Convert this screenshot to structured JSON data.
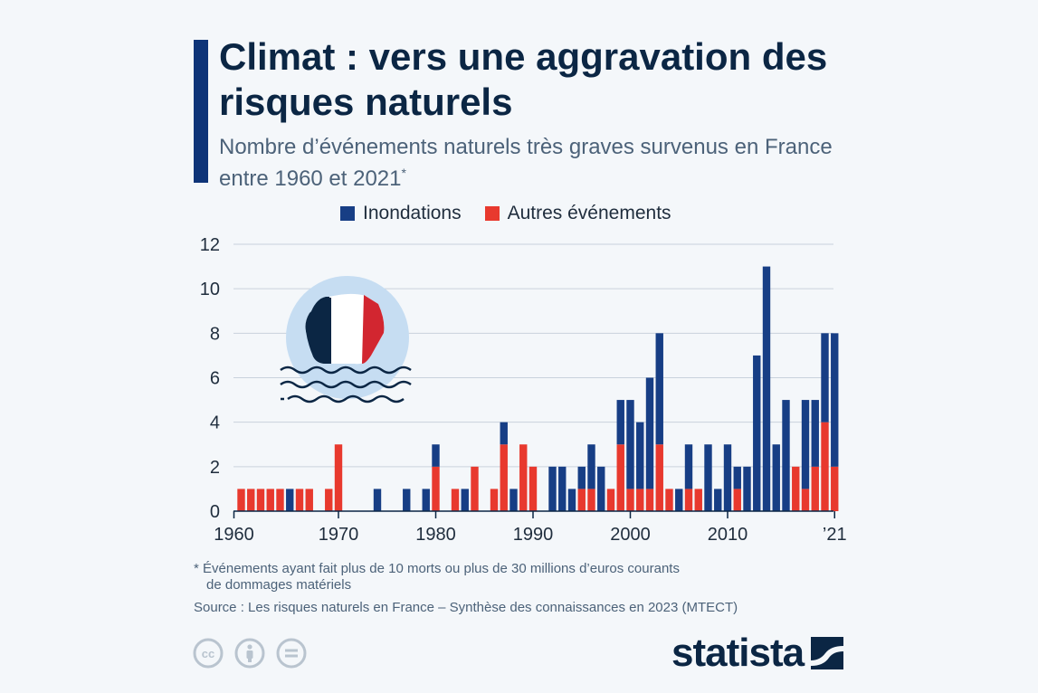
{
  "header": {
    "title": "Climat : vers une aggravation des risques naturels",
    "subtitle": "Nombre d’événements naturels très graves survenus en France entre 1960 et 2021",
    "subtitle_mark": "*"
  },
  "colors": {
    "accent": "#0e3478",
    "inondations": "#173e85",
    "autres": "#e8392e",
    "title": "#0b2644"
  },
  "chart_data": {
    "type": "bar",
    "stacked": true,
    "title": "",
    "xlabel": "",
    "ylabel": "",
    "ylim": [
      0,
      12
    ],
    "yticks": [
      "0",
      "2",
      "4",
      "6",
      "8",
      "10",
      "12"
    ],
    "xtick_labels": [
      {
        "year": 1960,
        "label": "1960"
      },
      {
        "year": 1970,
        "label": "1970"
      },
      {
        "year": 1980,
        "label": "1980"
      },
      {
        "year": 1990,
        "label": "1990"
      },
      {
        "year": 2000,
        "label": "2000"
      },
      {
        "year": 2010,
        "label": "2010"
      },
      {
        "year": 2021,
        "label": "’21"
      }
    ],
    "grid": true,
    "legend_position": "top",
    "categories": [
      1960,
      1961,
      1962,
      1963,
      1964,
      1965,
      1966,
      1967,
      1968,
      1969,
      1970,
      1971,
      1972,
      1973,
      1974,
      1975,
      1976,
      1977,
      1978,
      1979,
      1980,
      1981,
      1982,
      1983,
      1984,
      1985,
      1986,
      1987,
      1988,
      1989,
      1990,
      1991,
      1992,
      1993,
      1994,
      1995,
      1996,
      1997,
      1998,
      1999,
      2000,
      2001,
      2002,
      2003,
      2004,
      2005,
      2006,
      2007,
      2008,
      2009,
      2010,
      2011,
      2012,
      2013,
      2014,
      2015,
      2016,
      2017,
      2018,
      2019,
      2020,
      2021
    ],
    "series": [
      {
        "name": "Autres événements",
        "color": "#e8392e",
        "values": [
          1,
          1,
          1,
          1,
          1,
          0,
          1,
          1,
          0,
          1,
          3,
          0,
          0,
          0,
          0,
          0,
          0,
          0,
          0,
          0,
          2,
          0,
          1,
          0,
          2,
          0,
          1,
          3,
          0,
          3,
          2,
          0,
          0,
          0,
          0,
          1,
          1,
          0,
          1,
          3,
          1,
          1,
          1,
          3,
          1,
          0,
          1,
          1,
          0,
          0,
          0,
          1,
          0,
          0,
          0,
          0,
          0,
          2,
          1,
          2,
          4,
          2
        ]
      },
      {
        "name": "Inondations",
        "color": "#173e85",
        "values": [
          0,
          0,
          0,
          0,
          0,
          1,
          0,
          0,
          0,
          0,
          0,
          0,
          0,
          0,
          1,
          0,
          0,
          1,
          0,
          1,
          1,
          0,
          0,
          1,
          0,
          0,
          0,
          1,
          1,
          0,
          0,
          0,
          2,
          2,
          1,
          1,
          2,
          2,
          0,
          2,
          4,
          3,
          5,
          5,
          0,
          1,
          2,
          0,
          3,
          1,
          3,
          1,
          2,
          7,
          11,
          3,
          5,
          0,
          4,
          3,
          4,
          6
        ]
      }
    ]
  },
  "footnote": {
    "line1": "* Événements ayant fait plus de 10 morts ou plus de 30 millions d’euros courants",
    "line2": "de dommages matériels"
  },
  "source": "Source : Les risques naturels en France – Synthèse des connaissances en 2023 (MTECT)",
  "logo": {
    "text": "statista"
  },
  "icons": {
    "license": [
      "cc-icon",
      "attribution-icon",
      "no-derivatives-icon"
    ],
    "illustration": "france-flag-waves-icon"
  }
}
